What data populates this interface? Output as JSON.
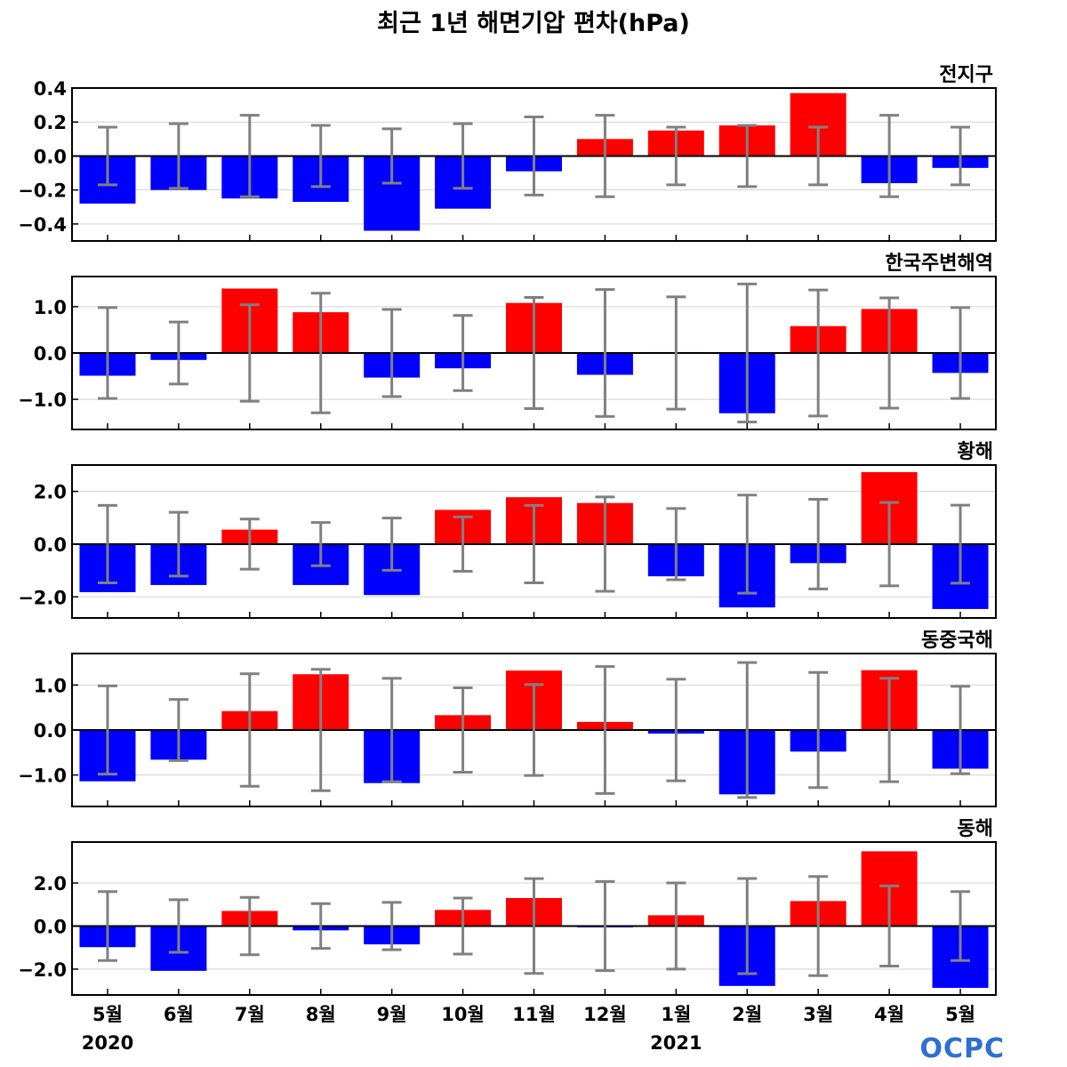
{
  "chart_data": {
    "type": "bar",
    "title": "최근 1년 해면기압 편차(hPa)",
    "categories": [
      "5월",
      "6월",
      "7월",
      "8월",
      "9월",
      "10월",
      "11월",
      "12월",
      "1월",
      "2월",
      "3월",
      "4월",
      "5월"
    ],
    "year_labels": [
      {
        "text": "2020",
        "category_index": 0
      },
      {
        "text": "2021",
        "category_index": 8
      }
    ],
    "logo": "OCPC",
    "colors": {
      "positive": "#ff0000",
      "negative": "#0000ff",
      "error_bar": "#808080",
      "zero_line": "#000000",
      "grid": "#d3d3d3"
    },
    "panels": [
      {
        "title": "전지구",
        "ylim": [
          -0.5,
          0.4
        ],
        "yticks": [
          0.4,
          0.2,
          0.0,
          -0.2,
          -0.4
        ],
        "ytick_labels": [
          "0.4",
          "0.2",
          "0.0",
          "−0.2",
          "−0.4"
        ],
        "values": [
          -0.28,
          -0.2,
          -0.25,
          -0.27,
          -0.44,
          -0.31,
          -0.09,
          0.1,
          0.15,
          0.18,
          0.37,
          -0.16,
          -0.07
        ],
        "error": [
          0.17,
          0.19,
          0.24,
          0.18,
          0.16,
          0.19,
          0.23,
          0.24,
          0.17,
          0.18,
          0.17,
          0.24,
          0.17
        ]
      },
      {
        "title": "한국주변해역",
        "ylim": [
          -1.65,
          1.65
        ],
        "yticks": [
          1.0,
          0.0,
          -1.0
        ],
        "ytick_labels": [
          "1.0",
          "0.0",
          "−1.0"
        ],
        "values": [
          -0.49,
          -0.15,
          1.39,
          0.88,
          -0.53,
          -0.33,
          1.08,
          -0.47,
          0.02,
          -1.3,
          0.58,
          0.95,
          -0.43
        ],
        "error": [
          0.98,
          0.67,
          1.04,
          1.29,
          0.94,
          0.81,
          1.2,
          1.37,
          1.21,
          1.49,
          1.36,
          1.19,
          0.98
        ]
      },
      {
        "title": "황해",
        "ylim": [
          -2.8,
          3.0
        ],
        "yticks": [
          2.0,
          0.0,
          -2.0
        ],
        "ytick_labels": [
          "2.0",
          "0.0",
          "−2.0"
        ],
        "values": [
          -1.82,
          -1.55,
          0.55,
          -1.55,
          -1.93,
          1.3,
          1.78,
          1.56,
          -1.22,
          -2.4,
          -0.72,
          2.73,
          -2.46
        ],
        "error": [
          1.47,
          1.21,
          0.95,
          0.82,
          0.99,
          1.03,
          1.47,
          1.79,
          1.35,
          1.86,
          1.7,
          1.58,
          1.48
        ]
      },
      {
        "title": "동중국해",
        "ylim": [
          -1.7,
          1.7
        ],
        "yticks": [
          1.0,
          0.0,
          -1.0
        ],
        "ytick_labels": [
          "1.0",
          "0.0",
          "−1.0"
        ],
        "values": [
          -1.14,
          -0.66,
          0.42,
          1.24,
          -1.18,
          0.33,
          1.32,
          0.18,
          -0.08,
          -1.43,
          -0.48,
          1.33,
          -0.86
        ],
        "error": [
          0.98,
          0.68,
          1.25,
          1.35,
          1.15,
          0.94,
          1.01,
          1.41,
          1.13,
          1.5,
          1.28,
          1.15,
          0.97
        ]
      },
      {
        "title": "동해",
        "ylim": [
          -3.2,
          3.9
        ],
        "yticks": [
          2.0,
          0.0,
          -2.0
        ],
        "ytick_labels": [
          "2.0",
          "0.0",
          "−2.0"
        ],
        "values": [
          -0.98,
          -2.08,
          0.7,
          -0.2,
          -0.85,
          0.75,
          1.3,
          -0.06,
          0.5,
          -2.78,
          1.16,
          3.47,
          -2.87
        ],
        "error": [
          1.6,
          1.22,
          1.33,
          1.04,
          1.1,
          1.3,
          2.2,
          2.07,
          2.0,
          2.21,
          2.3,
          1.86,
          1.6
        ]
      }
    ]
  }
}
